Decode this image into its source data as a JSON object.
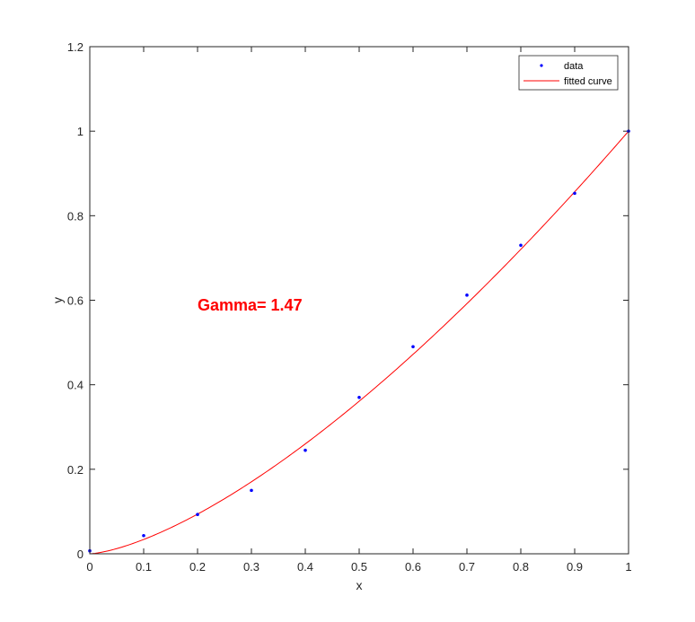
{
  "chart_data": {
    "type": "scatter",
    "xlabel": "x",
    "ylabel": "y",
    "xlim": [
      0,
      1
    ],
    "ylim": [
      0,
      1.2
    ],
    "xticks": [
      "0",
      "0.1",
      "0.2",
      "0.3",
      "0.4",
      "0.5",
      "0.6",
      "0.7",
      "0.8",
      "0.9",
      "1"
    ],
    "yticks": [
      "0",
      "0.2",
      "0.4",
      "0.6",
      "0.8",
      "1",
      "1.2"
    ],
    "grid": false,
    "legend_position": "top-right",
    "series": [
      {
        "name": "data",
        "kind": "points",
        "color": "#0000ff",
        "x": [
          0,
          0.1,
          0.2,
          0.3,
          0.4,
          0.5,
          0.6,
          0.7,
          0.8,
          0.9,
          1.0
        ],
        "y": [
          0.007,
          0.043,
          0.093,
          0.15,
          0.245,
          0.37,
          0.49,
          0.612,
          0.73,
          0.853,
          1.0
        ]
      },
      {
        "name": "fitted curve",
        "kind": "line",
        "color": "#ff0000",
        "formula": "y = x^1.47",
        "gamma": 1.47
      }
    ],
    "annotation": {
      "text": "Gamma= 1.47",
      "x": 0.2,
      "y": 0.59,
      "color": "#ff0000"
    }
  }
}
